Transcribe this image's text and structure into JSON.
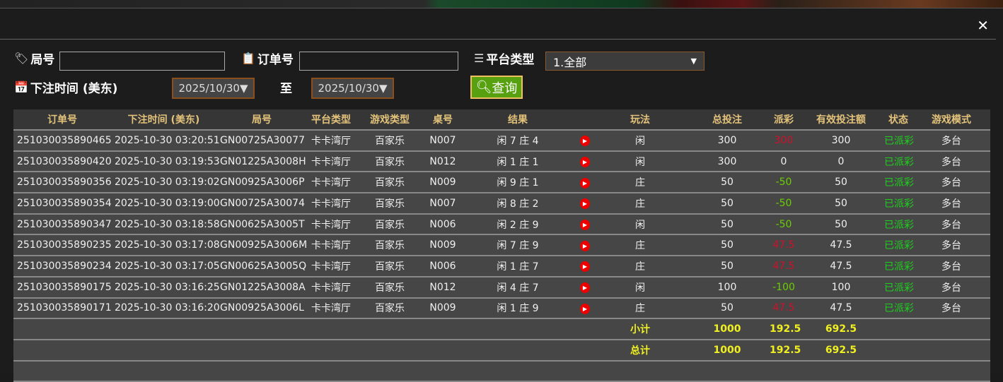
{
  "close_label": "✕",
  "filters": {
    "round_label": "局号",
    "round_value": "",
    "order_label": "订单号",
    "order_value": "",
    "platform_label": "平台类型",
    "platform_value": "1.全部",
    "time_label": "下注时间 (美东)",
    "date_from": "2025/10/30▼",
    "to_label": "至",
    "date_to": "2025/10/30▼",
    "search_label": "查询"
  },
  "table": {
    "headers": [
      "订单号",
      "下注时间 (美东)",
      "局号",
      "平台类型",
      "游戏类型",
      "桌号",
      "结果",
      "",
      "玩法",
      "总投注",
      "派彩",
      "有效投注额",
      "状态",
      "游戏模式"
    ],
    "rows": [
      [
        "251030035890465",
        "2025-10-30 03:20:51",
        "GN00725A30077",
        "卡卡湾厅",
        "百家乐",
        "N007",
        "闲 7 庄 4",
        "闲",
        "300",
        "300",
        "300",
        "已派彩",
        "多台"
      ],
      [
        "251030035890420",
        "2025-10-30 03:19:53",
        "GN01225A3008H",
        "卡卡湾厅",
        "百家乐",
        "N012",
        "闲 1 庄 1",
        "闲",
        "300",
        "0",
        "0",
        "已派彩",
        "多台"
      ],
      [
        "251030035890356",
        "2025-10-30 03:19:02",
        "GN00925A3006P",
        "卡卡湾厅",
        "百家乐",
        "N009",
        "闲 9 庄 1",
        "庄",
        "50",
        "-50",
        "50",
        "已派彩",
        "多台"
      ],
      [
        "251030035890354",
        "2025-10-30 03:19:00",
        "GN00725A30074",
        "卡卡湾厅",
        "百家乐",
        "N007",
        "闲 8 庄 2",
        "庄",
        "50",
        "-50",
        "50",
        "已派彩",
        "多台"
      ],
      [
        "251030035890347",
        "2025-10-30 03:18:58",
        "GN00625A3005T",
        "卡卡湾厅",
        "百家乐",
        "N006",
        "闲 2 庄 9",
        "闲",
        "50",
        "-50",
        "50",
        "已派彩",
        "多台"
      ],
      [
        "251030035890235",
        "2025-10-30 03:17:08",
        "GN00925A3006M",
        "卡卡湾厅",
        "百家乐",
        "N009",
        "闲 7 庄 9",
        "庄",
        "50",
        "47.5",
        "47.5",
        "已派彩",
        "多台"
      ],
      [
        "251030035890234",
        "2025-10-30 03:17:05",
        "GN00625A3005Q",
        "卡卡湾厅",
        "百家乐",
        "N006",
        "闲 1 庄 7",
        "庄",
        "50",
        "47.5",
        "47.5",
        "已派彩",
        "多台"
      ],
      [
        "251030035890175",
        "2025-10-30 03:16:25",
        "GN01225A3008A",
        "卡卡湾厅",
        "百家乐",
        "N012",
        "闲 4 庄 7",
        "闲",
        "100",
        "-100",
        "100",
        "已派彩",
        "多台"
      ],
      [
        "251030035890171",
        "2025-10-30 03:16:20",
        "GN00925A3006L",
        "卡卡湾厅",
        "百家乐",
        "N009",
        "闲 1 庄 9",
        "庄",
        "50",
        "47.5",
        "47.5",
        "已派彩",
        "多台"
      ]
    ],
    "subtotal": {
      "label": "小计",
      "total_bet": "1000",
      "payout": "192.5",
      "valid_bet": "692.5"
    },
    "grand_total": {
      "label": "总计",
      "total_bet": "1000",
      "payout": "192.5",
      "valid_bet": "692.5"
    }
  },
  "colors": {
    "payout_win": "#d0102a",
    "payout_loss": "#6ad000",
    "status": "#1ed01e",
    "header_text": "#e3c27a",
    "total_text": "#f0f020"
  }
}
